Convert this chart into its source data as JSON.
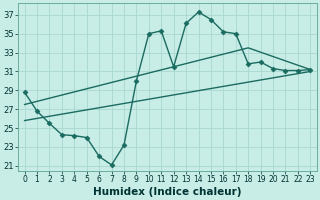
{
  "title": "",
  "xlabel": "Humidex (Indice chaleur)",
  "bg_color": "#c8ece6",
  "grid_color": "#a8d8d0",
  "line_color": "#1a6b60",
  "xlim": [
    -0.5,
    23.5
  ],
  "ylim": [
    20.5,
    38.2
  ],
  "xticks": [
    0,
    1,
    2,
    3,
    4,
    5,
    6,
    7,
    8,
    9,
    10,
    11,
    12,
    13,
    14,
    15,
    16,
    17,
    18,
    19,
    20,
    21,
    22,
    23
  ],
  "yticks": [
    21,
    23,
    25,
    27,
    29,
    31,
    33,
    35,
    37
  ],
  "line1_x": [
    0,
    1,
    2,
    3,
    4,
    5,
    6,
    7,
    8,
    9,
    10,
    11,
    12,
    13,
    14,
    15,
    16,
    17,
    18,
    19,
    20,
    21,
    22,
    23
  ],
  "line1_y": [
    28.8,
    26.8,
    25.5,
    24.3,
    24.2,
    24.0,
    22.0,
    21.1,
    23.2,
    30.0,
    35.0,
    35.3,
    31.5,
    36.1,
    37.3,
    36.5,
    35.2,
    35.0,
    31.8,
    32.0,
    31.3,
    31.1,
    31.1,
    31.2
  ],
  "line2_x": [
    0,
    18,
    23
  ],
  "line2_y": [
    27.5,
    33.5,
    31.2
  ],
  "line3_x": [
    0,
    23
  ],
  "line3_y": [
    25.8,
    31.0
  ],
  "marker": "D",
  "markersize": 2.5,
  "lw": 1.0,
  "tick_fontsize": 5.5,
  "xlabel_fontsize": 7.5
}
